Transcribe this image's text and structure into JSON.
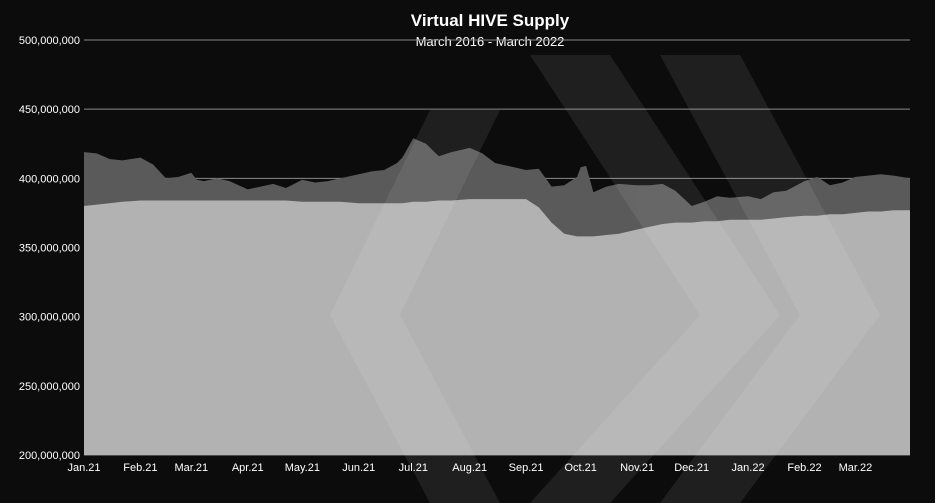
{
  "chart_data": {
    "type": "area",
    "title": "Virtual HIVE Supply",
    "subtitle": "March 2016 - March 2022",
    "xlabel": "",
    "ylabel": "",
    "ylim": [
      200000000,
      500000000
    ],
    "yticks": [
      200000000,
      250000000,
      300000000,
      350000000,
      400000000,
      450000000,
      500000000
    ],
    "ytick_labels": [
      "200,000,000",
      "250,000,000",
      "300,000,000",
      "350,000,000",
      "400,000,000",
      "450,000,000",
      "500,000,000"
    ],
    "xticks": [
      "Jan.21",
      "Feb.21",
      "Mar.21",
      "Apr.21",
      "May.21",
      "Jun.21",
      "Jul.21",
      "Aug.21",
      "Sep.21",
      "Oct.21",
      "Nov.21",
      "Dec.21",
      "Jan.22",
      "Feb.22",
      "Mar.22"
    ],
    "x": [
      "2021-01-01",
      "2021-01-08",
      "2021-01-15",
      "2021-01-22",
      "2021-02-01",
      "2021-02-08",
      "2021-02-15",
      "2021-02-22",
      "2021-03-01",
      "2021-03-04",
      "2021-03-08",
      "2021-03-15",
      "2021-03-22",
      "2021-04-01",
      "2021-04-08",
      "2021-04-15",
      "2021-04-22",
      "2021-05-01",
      "2021-05-08",
      "2021-05-15",
      "2021-05-22",
      "2021-06-01",
      "2021-06-08",
      "2021-06-15",
      "2021-06-22",
      "2021-06-25",
      "2021-07-01",
      "2021-07-08",
      "2021-07-15",
      "2021-07-22",
      "2021-08-01",
      "2021-08-08",
      "2021-08-15",
      "2021-08-22",
      "2021-09-01",
      "2021-09-08",
      "2021-09-15",
      "2021-09-22",
      "2021-09-29",
      "2021-10-01",
      "2021-10-04",
      "2021-10-08",
      "2021-10-15",
      "2021-10-22",
      "2021-11-01",
      "2021-11-08",
      "2021-11-15",
      "2021-11-22",
      "2021-12-01",
      "2021-12-08",
      "2021-12-15",
      "2021-12-22",
      "2022-01-01",
      "2022-01-08",
      "2022-01-15",
      "2022-01-22",
      "2022-02-01",
      "2022-02-08",
      "2022-02-15",
      "2022-02-22",
      "2022-03-01",
      "2022-03-08",
      "2022-03-15",
      "2022-03-22",
      "2022-03-31"
    ],
    "series": [
      {
        "name": "",
        "color": "#5a5a5a",
        "values": [
          419000000,
          418000000,
          414000000,
          413000000,
          415000000,
          410000000,
          400000000,
          401000000,
          404000000,
          399000000,
          398000000,
          400000000,
          398000000,
          392000000,
          394000000,
          396000000,
          393000000,
          399000000,
          397000000,
          398000000,
          400000000,
          403000000,
          405000000,
          406000000,
          411000000,
          415000000,
          429000000,
          425000000,
          416000000,
          419000000,
          422000000,
          418000000,
          411000000,
          409000000,
          406000000,
          407000000,
          394000000,
          395000000,
          401000000,
          408000000,
          409000000,
          390000000,
          394000000,
          396000000,
          395000000,
          395000000,
          396000000,
          391000000,
          380000000,
          383000000,
          387000000,
          386000000,
          387000000,
          385000000,
          390000000,
          391000000,
          398000000,
          401000000,
          395000000,
          397000000,
          401000000,
          402000000,
          403000000,
          402000000,
          400000000
        ]
      },
      {
        "name": "",
        "color": "#b2b2b2",
        "values": [
          380000000,
          381000000,
          382000000,
          383000000,
          384000000,
          384000000,
          384000000,
          384000000,
          384000000,
          384000000,
          384000000,
          384000000,
          384000000,
          384000000,
          384000000,
          384000000,
          384000000,
          383000000,
          383000000,
          383000000,
          383000000,
          382000000,
          382000000,
          382000000,
          382000000,
          382000000,
          383000000,
          383000000,
          384000000,
          384000000,
          385000000,
          385000000,
          385000000,
          385000000,
          385000000,
          379000000,
          368000000,
          360000000,
          358000000,
          358000000,
          358000000,
          358000000,
          359000000,
          360000000,
          363000000,
          365000000,
          367000000,
          368000000,
          368000000,
          369000000,
          369000000,
          370000000,
          370000000,
          370000000,
          371000000,
          372000000,
          373000000,
          373000000,
          374000000,
          374000000,
          375000000,
          376000000,
          376000000,
          377000000,
          377000000
        ]
      }
    ],
    "colors": {
      "background": "#0c0c0c",
      "grid": "#8a8a8a",
      "text": "#ffffff",
      "watermark": "#ffffff"
    },
    "grid": true,
    "legend": "none",
    "watermark": "hive-logo-icon"
  }
}
